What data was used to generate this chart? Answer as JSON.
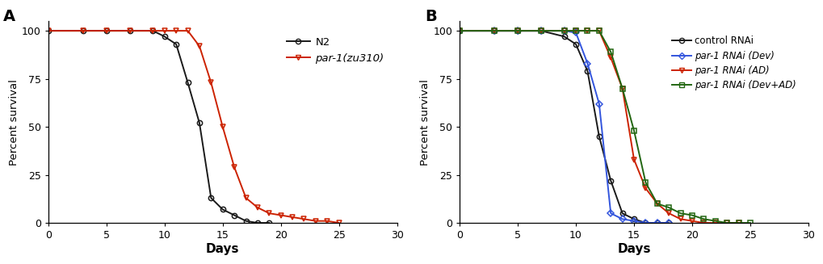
{
  "panel_A": {
    "N2": {
      "x": [
        0,
        3,
        5,
        7,
        9,
        10,
        11,
        12,
        13,
        14,
        15,
        16,
        17,
        18,
        19
      ],
      "y": [
        100,
        100,
        100,
        100,
        100,
        97,
        93,
        73,
        52,
        13,
        7,
        4,
        1,
        0,
        0
      ],
      "color": "#1a1a1a",
      "marker": "o"
    },
    "par1": {
      "x": [
        0,
        3,
        5,
        7,
        9,
        10,
        11,
        12,
        13,
        14,
        15,
        16,
        17,
        18,
        19,
        20,
        21,
        22,
        23,
        24,
        25
      ],
      "y": [
        100,
        100,
        100,
        100,
        100,
        100,
        100,
        100,
        92,
        73,
        50,
        29,
        13,
        8,
        5,
        4,
        3,
        2,
        1,
        1,
        0
      ],
      "color": "#cc2200",
      "marker": "v"
    }
  },
  "panel_B": {
    "control": {
      "x": [
        0,
        3,
        5,
        7,
        9,
        10,
        11,
        12,
        13,
        14,
        15,
        16,
        17,
        18
      ],
      "y": [
        100,
        100,
        100,
        100,
        97,
        93,
        79,
        45,
        22,
        5,
        2,
        0,
        0,
        0
      ],
      "color": "#1a1a1a",
      "marker": "o"
    },
    "dev": {
      "x": [
        0,
        3,
        5,
        7,
        9,
        10,
        11,
        12,
        13,
        14,
        15,
        16,
        17,
        18
      ],
      "y": [
        100,
        100,
        100,
        100,
        100,
        99,
        83,
        62,
        5,
        2,
        1,
        0,
        0,
        0
      ],
      "color": "#3355dd",
      "marker": "D"
    },
    "AD": {
      "x": [
        0,
        3,
        5,
        7,
        9,
        10,
        11,
        12,
        13,
        14,
        15,
        16,
        17,
        18,
        19,
        20,
        21,
        22,
        23,
        24
      ],
      "y": [
        100,
        100,
        100,
        100,
        100,
        100,
        100,
        100,
        86,
        70,
        33,
        18,
        10,
        5,
        2,
        1,
        0,
        0,
        0,
        0
      ],
      "color": "#cc2200",
      "marker": "v"
    },
    "devAD": {
      "x": [
        0,
        3,
        5,
        7,
        9,
        10,
        11,
        12,
        13,
        14,
        15,
        16,
        17,
        18,
        19,
        20,
        21,
        22,
        23,
        24,
        25
      ],
      "y": [
        100,
        100,
        100,
        100,
        100,
        100,
        100,
        100,
        89,
        70,
        48,
        21,
        10,
        8,
        5,
        4,
        2,
        1,
        0,
        0,
        0
      ],
      "color": "#226611",
      "marker": "s"
    }
  },
  "xlim": [
    0,
    30
  ],
  "ylim": [
    0,
    105
  ],
  "yticks": [
    0,
    25,
    50,
    75,
    100
  ],
  "xticks": [
    0,
    5,
    10,
    15,
    20,
    25,
    30
  ],
  "xlabel": "Days",
  "ylabel": "Percent survival",
  "markersize": 4.5,
  "linewidth": 1.4,
  "background_color": "#ffffff"
}
